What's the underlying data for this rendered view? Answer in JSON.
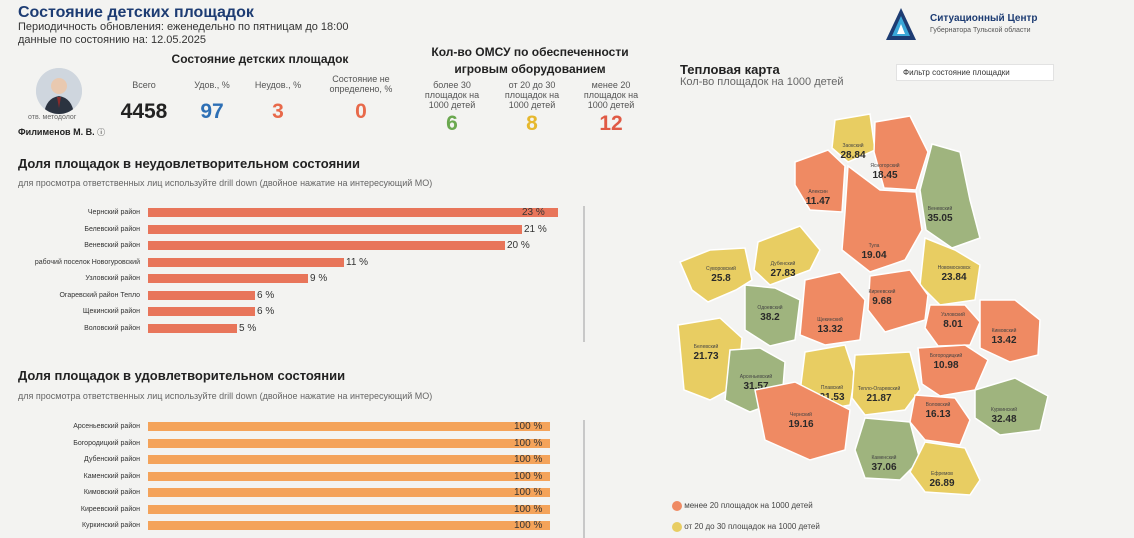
{
  "header": {
    "title": "Состояние детских площадок",
    "line1": "Периодичность обновления: еженедельно по пятницам до 18:00",
    "line2": "данные по состоянию на: 12.05.2025"
  },
  "logo": {
    "title": "Ситуационный Центр",
    "subtitle": "Губернатора Тульской области"
  },
  "person": {
    "role": "отв. методолог",
    "name": "Филименов М. В."
  },
  "status_block": {
    "title": "Состояние детских площадок",
    "items": [
      {
        "label": "Всего",
        "value": "4458",
        "color": "#222222"
      },
      {
        "label": "Удов., %",
        "value": "97",
        "color": "#2d6fb5"
      },
      {
        "label": "Неудов., %",
        "value": "3",
        "color": "#e8694a"
      },
      {
        "label": "Состояние не определено, %",
        "value": "0",
        "color": "#e8694a"
      }
    ]
  },
  "omsu_block": {
    "title": "Кол-во ОМСУ по обеспеченности игровым оборудованием",
    "items": [
      {
        "label": "более 30 площадок на 1000 детей",
        "value": "6",
        "color": "#6aa84f"
      },
      {
        "label": "от 20 до 30 площадок на 1000 детей",
        "value": "8",
        "color": "#e6b82e"
      },
      {
        "label": "менее 20 площадок на 1000 детей",
        "value": "12",
        "color": "#e05a45"
      }
    ]
  },
  "unsatisfactory": {
    "title": "Доля площадок в неудовлетворительном состоянии",
    "note": "для просмотра ответственных лиц используйте drill down (двойное нажатие на интересующий МО)",
    "bar_color": "#e8755a",
    "rows": [
      {
        "label": "Чернский район",
        "value": 23,
        "text": "23 %"
      },
      {
        "label": "Белевский район",
        "value": 21,
        "text": "21 %"
      },
      {
        "label": "Веневский район",
        "value": 20,
        "text": "20 %"
      },
      {
        "label": "рабочий поселок Новогуровский",
        "value": 11,
        "text": "11 %"
      },
      {
        "label": "Узловский район",
        "value": 9,
        "text": "9 %"
      },
      {
        "label": "Огаревский район Тепло",
        "value": 6,
        "text": "6 %"
      },
      {
        "label": "Щекинский район",
        "value": 6,
        "text": "6 %"
      },
      {
        "label": "Воловский район",
        "value": 5,
        "text": "5 %"
      }
    ]
  },
  "satisfactory": {
    "title": "Доля площадок в удовлетворительном состоянии",
    "note": "для просмотра ответственных лиц используйте drill down (двойное нажатие на интересующий МО)",
    "bar_color": "#f4a35a",
    "rows": [
      {
        "label": "Арсеньевский район",
        "value": 100,
        "text": "100 %"
      },
      {
        "label": "Богородицкий район",
        "value": 100,
        "text": "100 %"
      },
      {
        "label": "Дубенский район",
        "value": 100,
        "text": "100 %"
      },
      {
        "label": "Каменский район",
        "value": 100,
        "text": "100 %"
      },
      {
        "label": "Кимовский район",
        "value": 100,
        "text": "100 %"
      },
      {
        "label": "Киреевский район",
        "value": 100,
        "text": "100 %"
      },
      {
        "label": "Куркинский район",
        "value": 100,
        "text": "100 %"
      }
    ]
  },
  "heatmap": {
    "title": "Тепловая карта",
    "subtitle": "Кол-во площадок на 1000 детей",
    "filter": "Фильтр состояние площадки",
    "colors": {
      "red": "#ef8a63",
      "yellow": "#e8cd62",
      "green": "#9fb47e"
    },
    "regions": [
      {
        "name": "Заокский",
        "value": "28.84",
        "color": "yellow"
      },
      {
        "name": "Ясногорский",
        "value": "18.45",
        "color": "red"
      },
      {
        "name": "Алексин",
        "value": "11.47",
        "color": "red"
      },
      {
        "name": "Веневский",
        "value": "35.05",
        "color": "green"
      },
      {
        "name": "Тула",
        "value": "19.04",
        "color": "red"
      },
      {
        "name": "Суворовский",
        "value": "25.8",
        "color": "yellow"
      },
      {
        "name": "Дубенский",
        "value": "27.83",
        "color": "yellow"
      },
      {
        "name": "Новомосковск",
        "value": "23.84",
        "color": "yellow"
      },
      {
        "name": "Одоевский",
        "value": "38.2",
        "color": "green"
      },
      {
        "name": "Щекинский",
        "value": "13.32",
        "color": "red"
      },
      {
        "name": "Киреевский",
        "value": "9.68",
        "color": "red"
      },
      {
        "name": "Узловский",
        "value": "8.01",
        "color": "red"
      },
      {
        "name": "Кимовский",
        "value": "13.42",
        "color": "red"
      },
      {
        "name": "Белевский",
        "value": "21.73",
        "color": "yellow"
      },
      {
        "name": "Богородицкий",
        "value": "10.98",
        "color": "red"
      },
      {
        "name": "Арсеньевский",
        "value": "31.57",
        "color": "green"
      },
      {
        "name": "Плавский",
        "value": "21.53",
        "color": "yellow"
      },
      {
        "name": "Тепло-Огаревский",
        "value": "21.87",
        "color": "yellow"
      },
      {
        "name": "Воловский",
        "value": "16.13",
        "color": "red"
      },
      {
        "name": "Куркинский",
        "value": "32.48",
        "color": "green"
      },
      {
        "name": "Чернский",
        "value": "19.16",
        "color": "red"
      },
      {
        "name": "Каменский",
        "value": "37.06",
        "color": "green"
      },
      {
        "name": "Ефремов",
        "value": "26.89",
        "color": "yellow"
      }
    ],
    "legend": [
      {
        "label": "менее 20 площадок на 1000 детей",
        "color": "red"
      },
      {
        "label": "от 20 до 30 площадок на 1000 детей",
        "color": "yellow"
      }
    ]
  }
}
